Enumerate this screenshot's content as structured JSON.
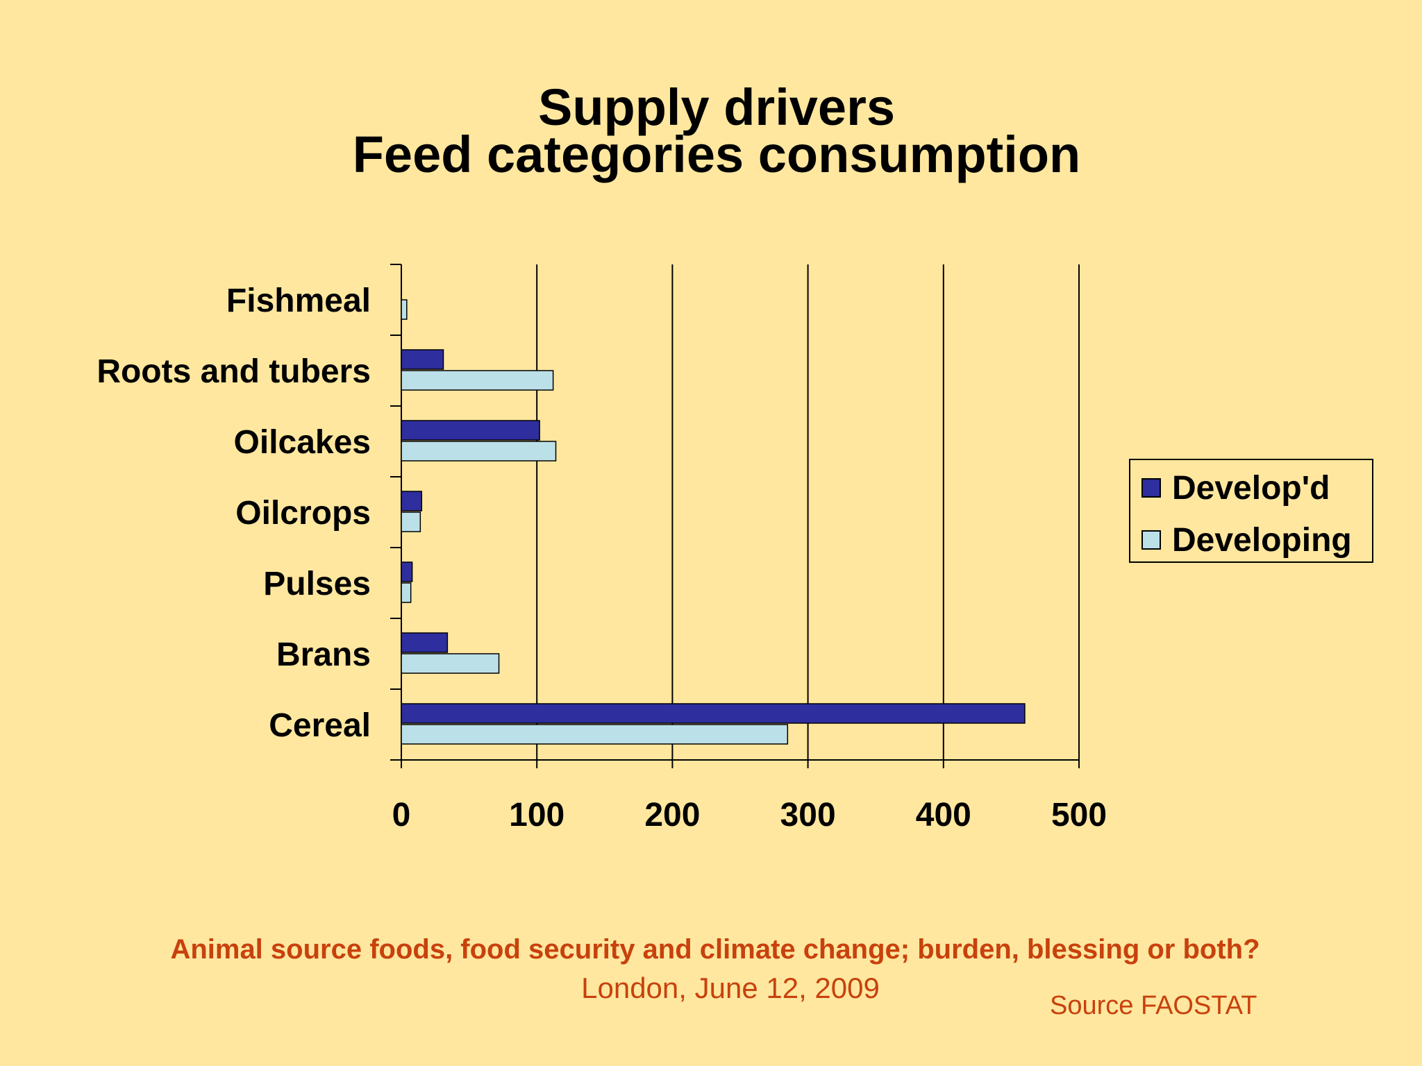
{
  "slide": {
    "title_line1": "Supply drivers",
    "title_line2": "Feed categories consumption",
    "footer_title": "Animal source foods, food security and climate change; burden, blessing or both?",
    "footer_date": "London, June 12, 2009",
    "source": "Source FAOSTAT"
  },
  "colors": {
    "background": "#FFE79F",
    "developed": "#2E2E9E",
    "developing": "#BCE0E8",
    "footer_text": "#C8410D"
  },
  "chart_data": {
    "type": "bar",
    "orientation": "horizontal",
    "categories": [
      "Fishmeal",
      "Roots and tubers",
      "Oilcakes",
      "Oilcrops",
      "Pulses",
      "Brans",
      "Cereal"
    ],
    "series": [
      {
        "name": "Develop'd",
        "values": [
          0,
          31,
          102,
          15,
          8,
          34,
          460
        ]
      },
      {
        "name": "Developing",
        "values": [
          4,
          112,
          114,
          14,
          7,
          72,
          285
        ]
      }
    ],
    "xlim": [
      0,
      500
    ],
    "xticks": [
      "0",
      "100",
      "200",
      "300",
      "400",
      "500"
    ],
    "grid": "vertical",
    "legend_position": "right"
  }
}
